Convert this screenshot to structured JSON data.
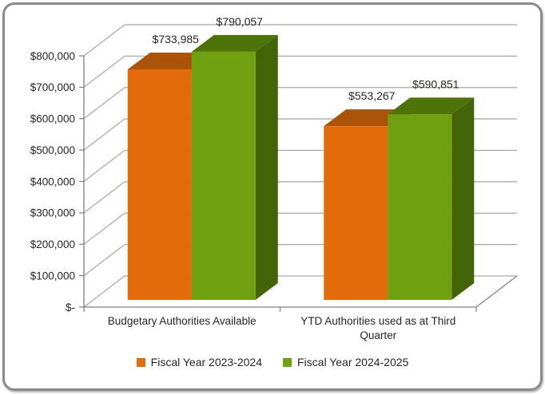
{
  "chart_data": {
    "type": "bar",
    "projection": "3d-clustered-column",
    "title": "",
    "categories": [
      "Budgetary Authorities Available",
      "YTD Authorities used as at Third Quarter"
    ],
    "categories_wrapped": [
      [
        "Budgetary Authorities Available"
      ],
      [
        "YTD Authorities used as at Third",
        "Quarter"
      ]
    ],
    "series": [
      {
        "name": "Fiscal Year 2023-2024",
        "values": [
          733985,
          553267
        ],
        "labels": [
          "$733,985",
          "$553,267"
        ],
        "color": "#E36C0A",
        "top_color": "#AA5409",
        "side_color": "#8F4708"
      },
      {
        "name": "Fiscal Year 2024-2025",
        "values": [
          790057,
          590851
        ],
        "labels": [
          "$790,057",
          "$590,851"
        ],
        "color": "#6FA00F",
        "top_color": "#4E7309",
        "side_color": "#446408"
      }
    ],
    "ylim": [
      0,
      800000
    ],
    "ytick_labels": [
      "$-",
      "$100,000",
      "$200,000",
      "$300,000",
      "$400,000",
      "$500,000",
      "$600,000",
      "$700,000",
      "$800,000"
    ],
    "grid": true,
    "legend_position": "bottom",
    "xlabel": "",
    "ylabel": "",
    "colors": {
      "axis": "#7F7F7F",
      "grid": "#A6A6A6",
      "text": "#262626",
      "frame_border": "#8A8A8A",
      "background": "#FFFFFF"
    }
  }
}
